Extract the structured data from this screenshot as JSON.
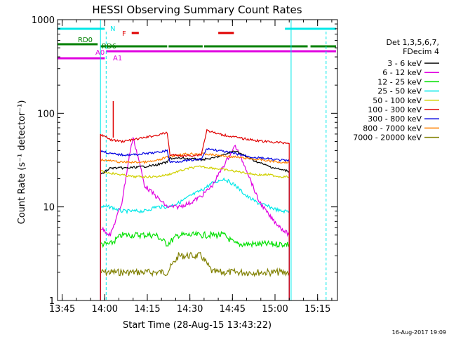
{
  "chart_data": {
    "type": "line",
    "title": "HESSI Observing Summary Count Rates",
    "xlabel": "Start Time (28-Aug-15 13:43:22)",
    "ylabel": "Count Rate (s⁻¹ detector⁻¹)",
    "y_scale": "log",
    "ylim": [
      1,
      1000
    ],
    "xlim": [
      "13:43:22",
      "15:22:00"
    ],
    "x_ticks": [
      "13:45",
      "14:00",
      "14:15",
      "14:30",
      "14:45",
      "15:00",
      "15:15"
    ],
    "y_ticks": [
      "1",
      "10",
      "100",
      "1000"
    ],
    "grid": false,
    "legend_position": "right",
    "legend_header": [
      "Det 1,3,5,6,7,",
      "FDecim 4"
    ],
    "footer_stamp": "16-Aug-2017 19:09",
    "data_interval": [
      "13:58:30",
      "15:05:40"
    ],
    "series": [
      {
        "name": "3 - 6 keV",
        "color": "#000000",
        "x": [
          "13:58:30",
          "14:02",
          "14:08",
          "14:14",
          "14:18",
          "14:22",
          "14:23",
          "14:28",
          "14:34",
          "14:38",
          "14:42",
          "14:46",
          "14:50",
          "14:54",
          "14:58",
          "15:02",
          "15:05"
        ],
        "y": [
          22,
          26,
          26,
          27,
          28,
          30,
          33,
          33,
          32,
          33,
          36,
          40,
          34,
          30,
          27,
          25,
          24
        ]
      },
      {
        "name": "6 - 12 keV",
        "color": "#e000e0",
        "x": [
          "13:58:30",
          "14:02",
          "14:06",
          "14:09",
          "14:10",
          "14:12",
          "14:14",
          "14:18",
          "14:22",
          "14:26",
          "14:30",
          "14:34",
          "14:38",
          "14:42",
          "14:46",
          "14:50",
          "14:54",
          "14:58",
          "15:02",
          "15:05"
        ],
        "y": [
          6,
          5,
          11,
          40,
          55,
          32,
          17,
          13,
          10,
          10,
          11,
          13,
          17,
          28,
          45,
          25,
          12,
          8,
          6,
          5
        ]
      },
      {
        "name": "12 - 25 keV",
        "color": "#00e000",
        "x": [
          "13:58:30",
          "14:02",
          "14:06",
          "14:10",
          "14:14",
          "14:18",
          "14:22",
          "14:26",
          "14:30",
          "14:34",
          "14:38",
          "14:42",
          "14:46",
          "14:50",
          "14:54",
          "14:58",
          "15:02",
          "15:05"
        ],
        "y": [
          4,
          4,
          5,
          5,
          5,
          5,
          4,
          5,
          5,
          5,
          5,
          5,
          4,
          4,
          4,
          4,
          4,
          4
        ]
      },
      {
        "name": "25 - 50 keV",
        "color": "#00e8e8",
        "x": [
          "13:58:30",
          "14:02",
          "14:06",
          "14:10",
          "14:14",
          "14:18",
          "14:22",
          "14:26",
          "14:30",
          "14:34",
          "14:38",
          "14:42",
          "14:46",
          "14:50",
          "14:54",
          "14:58",
          "15:02",
          "15:05"
        ],
        "y": [
          10,
          10,
          9,
          9,
          9,
          10,
          10,
          11,
          13,
          15,
          18,
          20,
          17,
          13,
          11,
          10,
          9,
          9
        ]
      },
      {
        "name": "50 - 100 keV",
        "color": "#d0d000",
        "x": [
          "13:58:30",
          "14:02",
          "14:06",
          "14:10",
          "14:14",
          "14:18",
          "14:22",
          "14:26",
          "14:30",
          "14:34",
          "14:38",
          "14:42",
          "14:46",
          "14:50",
          "14:54",
          "14:58",
          "15:02",
          "15:05"
        ],
        "y": [
          24,
          23,
          22,
          21,
          21,
          21,
          22,
          24,
          26,
          27,
          26,
          25,
          24,
          23,
          22,
          22,
          21,
          21
        ]
      },
      {
        "name": "100 - 300 keV",
        "color": "#e00000",
        "x": [
          "13:58:30",
          "14:02",
          "14:06",
          "14:10",
          "14:14",
          "14:18",
          "14:22",
          "14:23",
          "14:28",
          "14:34",
          "14:36",
          "14:40",
          "14:44",
          "14:48",
          "14:52",
          "14:56",
          "15:00",
          "15:05"
        ],
        "y": [
          60,
          52,
          50,
          52,
          55,
          58,
          62,
          36,
          35,
          36,
          66,
          60,
          57,
          54,
          52,
          50,
          49,
          48
        ]
      },
      {
        "name": "300 - 800 keV",
        "color": "#0000e0",
        "x": [
          "13:58:30",
          "14:02",
          "14:06",
          "14:10",
          "14:14",
          "14:18",
          "14:22",
          "14:23",
          "14:28",
          "14:34",
          "14:36",
          "14:40",
          "14:44",
          "14:48",
          "14:52",
          "14:56",
          "15:00",
          "15:05"
        ],
        "y": [
          40,
          37,
          36,
          36,
          37,
          38,
          40,
          30,
          31,
          32,
          42,
          40,
          38,
          36,
          34,
          33,
          32,
          31
        ]
      },
      {
        "name": "800 - 7000 keV",
        "color": "#ff8000",
        "x": [
          "13:58:30",
          "14:02",
          "14:06",
          "14:10",
          "14:14",
          "14:18",
          "14:22",
          "14:26",
          "14:30",
          "14:34",
          "14:38",
          "14:42",
          "14:46",
          "14:50",
          "14:54",
          "14:58",
          "15:02",
          "15:05"
        ],
        "y": [
          32,
          31,
          30,
          30,
          30,
          31,
          34,
          36,
          37,
          37,
          36,
          35,
          34,
          33,
          32,
          31,
          30,
          30
        ]
      },
      {
        "name": "7000 - 20000 keV",
        "color": "#808000",
        "x": [
          "13:58:30",
          "14:02",
          "14:06",
          "14:10",
          "14:14",
          "14:18",
          "14:22",
          "14:26",
          "14:30",
          "14:34",
          "14:38",
          "14:42",
          "14:46",
          "14:50",
          "14:54",
          "14:58",
          "15:02",
          "15:05"
        ],
        "y": [
          2,
          2,
          2,
          2,
          2,
          2,
          2,
          3,
          3,
          3,
          2,
          2,
          2,
          2,
          2,
          2,
          2,
          2
        ]
      }
    ],
    "flag_bars": [
      {
        "label": "N",
        "color": "#00e8e8",
        "segments": [
          [
            "13:43:22",
            "14:00:30"
          ],
          [
            "15:03:30",
            "15:22:00"
          ]
        ]
      },
      {
        "label": "F",
        "color": "#e00000",
        "segments": [
          [
            "14:09:30",
            "14:12:30"
          ],
          [
            "14:40:00",
            "14:46:00"
          ]
        ]
      },
      {
        "label": "RD0",
        "color": "#008000",
        "segments": [
          [
            "13:43:22",
            "13:58:00"
          ]
        ]
      },
      {
        "label": "RD6",
        "color": "#008000",
        "segments": [
          [
            "13:58:30",
            "14:22:30"
          ],
          [
            "14:22:30",
            "14:35:00"
          ],
          [
            "14:35:00",
            "15:12:00"
          ],
          [
            "15:12:30",
            "15:22:00"
          ]
        ]
      },
      {
        "label": "A0",
        "color": "#e000e0",
        "segments": [
          [
            "14:00:30",
            "15:22:00"
          ]
        ]
      },
      {
        "label": "A1",
        "color": "#e000e0",
        "segments": [
          [
            "13:43:22",
            "14:00:30"
          ]
        ]
      }
    ]
  }
}
